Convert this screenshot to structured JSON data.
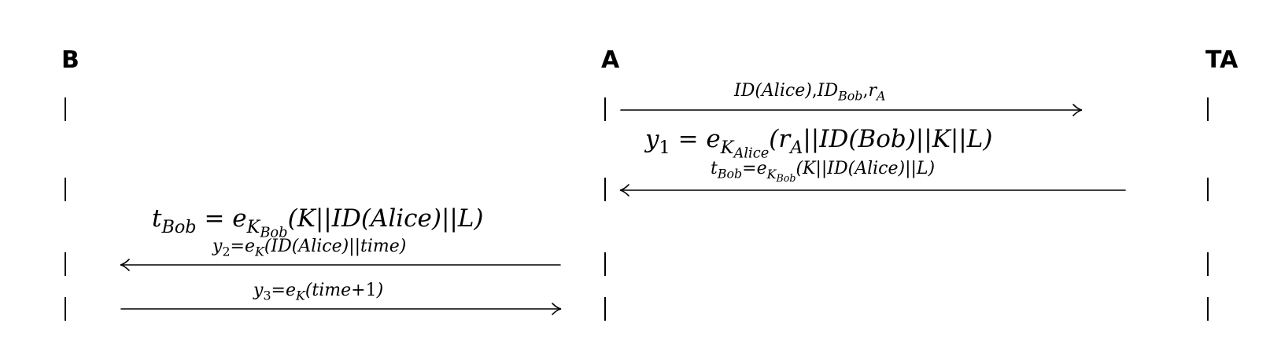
{
  "parties": {
    "b": "B",
    "a": "A",
    "ta": "TA"
  },
  "messages": {
    "m1": {
      "id_alice": "ID(Alice)",
      "comma1": ",",
      "id": "ID",
      "id_sub": "Bob",
      "comma2": ",",
      "r": "r",
      "r_sub": "A"
    },
    "m2": {
      "lhs": "y",
      "lhs_sub": "1",
      "eq": " = ",
      "e": "e",
      "k": "K",
      "k_sub": "Alice",
      "body": "(r",
      "r_sub": "A",
      "rest": "||ID(Bob)||K||L)"
    },
    "m3": {
      "lhs": "t",
      "lhs_sub": "Bob",
      "eq": "=",
      "e": "e",
      "k": "K",
      "k_sub": "Bob",
      "body": "(K||ID(Alice)||L)"
    },
    "m4": {
      "lhs": "t",
      "lhs_sub": "Bob",
      "eq": " = ",
      "e": "e",
      "k": "K",
      "k_sub": "Bob",
      "body": "(K||ID(Alice)||L)"
    },
    "m5": {
      "lhs": "y",
      "lhs_sub": "2",
      "eq": "=",
      "e": "e",
      "k": "K",
      "body": "(ID(Alice)||time)"
    },
    "m6": {
      "lhs": "y",
      "lhs_sub": "3",
      "eq": "=",
      "e": "e",
      "k": "K",
      "body": "(time",
      "plus": "+1",
      "close": ")"
    }
  }
}
